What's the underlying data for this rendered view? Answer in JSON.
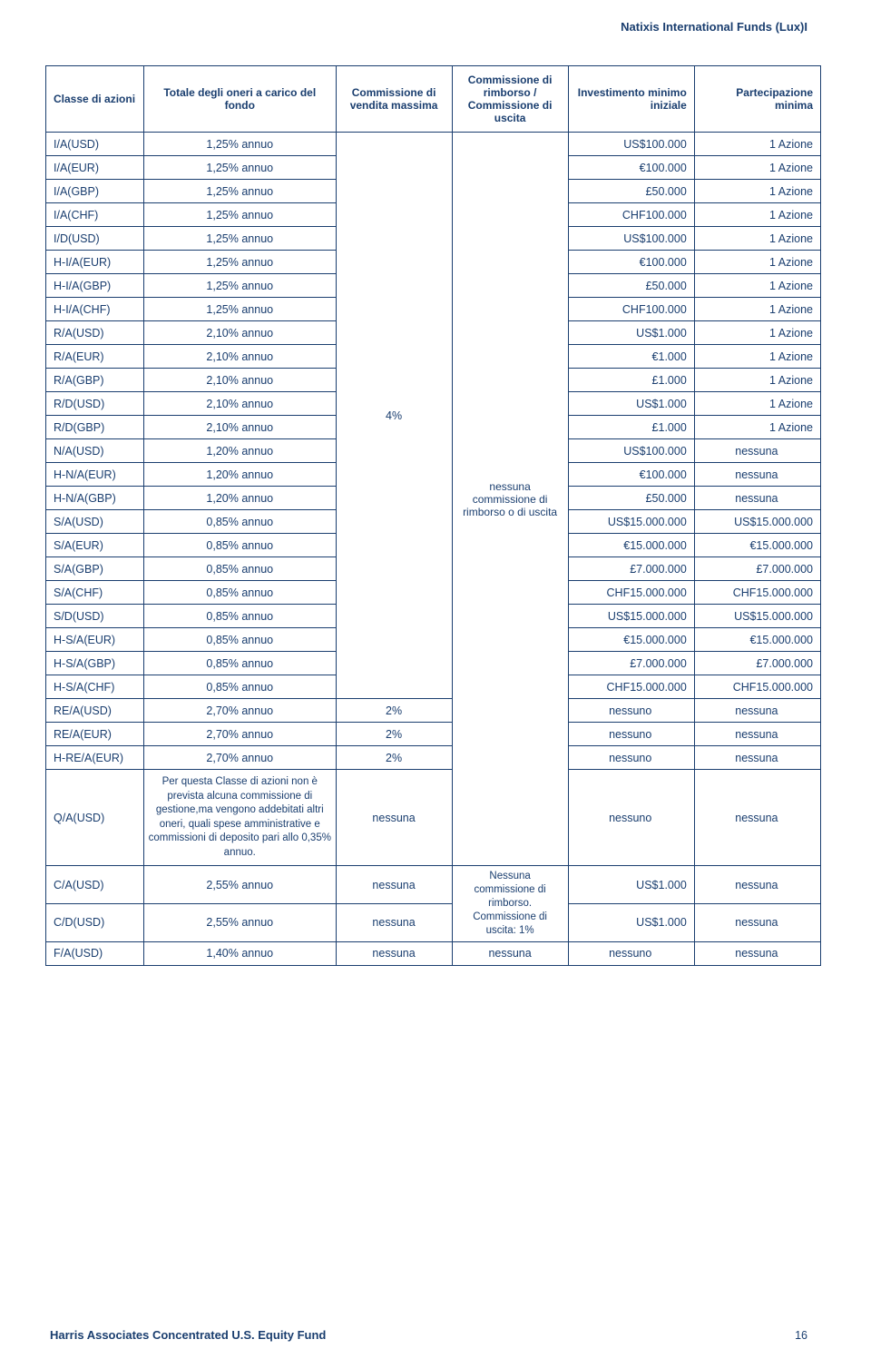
{
  "header": "Natixis International Funds (Lux)I",
  "footer": "Harris Associates Concentrated U.S. Equity Fund",
  "page_num": "16",
  "columns": [
    "Classe di azioni",
    "Totale degli oneri a carico del fondo",
    "Commissione di vendita massima",
    "Commissione di rimborso / Commissione di uscita",
    "Investimento minimo iniziale",
    "Partecipazione minima"
  ],
  "merged_col2": "4%",
  "merged_col3": "nessuna commissione di rimborso o di uscita",
  "q_text": "Per questa Classe di azioni non è prevista alcuna commissione di gestione,ma vengono addebitati altri oneri, quali spese amministrative e commissioni di deposito pari allo 0,35% annuo.",
  "cd_merge": "Nessuna commissione di rimborso. Commissione di uscita: 1%",
  "rows": [
    {
      "c0": "I/A(USD)",
      "c1": "1,25% annuo",
      "c4": "US$100.000",
      "c5": "1 Azione"
    },
    {
      "c0": "I/A(EUR)",
      "c1": "1,25% annuo",
      "c4": "€100.000",
      "c5": "1 Azione"
    },
    {
      "c0": "I/A(GBP)",
      "c1": "1,25% annuo",
      "c4": "£50.000",
      "c5": "1 Azione"
    },
    {
      "c0": "I/A(CHF)",
      "c1": "1,25% annuo",
      "c4": "CHF100.000",
      "c5": "1 Azione"
    },
    {
      "c0": "I/D(USD)",
      "c1": "1,25% annuo",
      "c4": "US$100.000",
      "c5": "1 Azione"
    },
    {
      "c0": "H-I/A(EUR)",
      "c1": "1,25% annuo",
      "c4": "€100.000",
      "c5": "1 Azione"
    },
    {
      "c0": "H-I/A(GBP)",
      "c1": "1,25% annuo",
      "c4": "£50.000",
      "c5": "1 Azione"
    },
    {
      "c0": "H-I/A(CHF)",
      "c1": "1,25% annuo",
      "c4": "CHF100.000",
      "c5": "1 Azione"
    },
    {
      "c0": "R/A(USD)",
      "c1": "2,10% annuo",
      "c4": "US$1.000",
      "c5": "1 Azione"
    },
    {
      "c0": "R/A(EUR)",
      "c1": "2,10% annuo",
      "c4": "€1.000",
      "c5": "1 Azione"
    },
    {
      "c0": "R/A(GBP)",
      "c1": "2,10% annuo",
      "c4": "£1.000",
      "c5": "1 Azione"
    },
    {
      "c0": "R/D(USD)",
      "c1": "2,10% annuo",
      "c4": "US$1.000",
      "c5": "1 Azione"
    },
    {
      "c0": "R/D(GBP)",
      "c1": "2,10% annuo",
      "c4": "£1.000",
      "c5": "1 Azione"
    },
    {
      "c0": "N/A(USD)",
      "c1": "1,20% annuo",
      "c4": "US$100.000",
      "c5": "nessuna"
    },
    {
      "c0": "H-N/A(EUR)",
      "c1": "1,20% annuo",
      "c4": "€100.000",
      "c5": "nessuna"
    },
    {
      "c0": "H-N/A(GBP)",
      "c1": "1,20% annuo",
      "c4": "£50.000",
      "c5": "nessuna"
    },
    {
      "c0": "S/A(USD)",
      "c1": "0,85% annuo",
      "c4": "US$15.000.000",
      "c5": "US$15.000.000"
    },
    {
      "c0": "S/A(EUR)",
      "c1": "0,85% annuo",
      "c4": "€15.000.000",
      "c5": "€15.000.000"
    },
    {
      "c0": "S/A(GBP)",
      "c1": "0,85% annuo",
      "c4": "£7.000.000",
      "c5": "£7.000.000"
    },
    {
      "c0": "S/A(CHF)",
      "c1": "0,85% annuo",
      "c4": "CHF15.000.000",
      "c5": "CHF15.000.000"
    },
    {
      "c0": "S/D(USD)",
      "c1": "0,85% annuo",
      "c4": "US$15.000.000",
      "c5": "US$15.000.000"
    },
    {
      "c0": "H-S/A(EUR)",
      "c1": "0,85% annuo",
      "c4": "€15.000.000",
      "c5": "€15.000.000"
    },
    {
      "c0": "H-S/A(GBP)",
      "c1": "0,85% annuo",
      "c4": "£7.000.000",
      "c5": "£7.000.000"
    },
    {
      "c0": "H-S/A(CHF)",
      "c1": "0,85% annuo",
      "c4": "CHF15.000.000",
      "c5": "CHF15.000.000"
    },
    {
      "c0": "RE/A(USD)",
      "c1": "2,70% annuo",
      "c2": "2%",
      "c4": "nessuno",
      "c5": "nessuna"
    },
    {
      "c0": "RE/A(EUR)",
      "c1": "2,70% annuo",
      "c2": "2%",
      "c4": "nessuno",
      "c5": "nessuna"
    },
    {
      "c0": "H-RE/A(EUR)",
      "c1": "2,70% annuo",
      "c2": "2%",
      "c4": "nessuno",
      "c5": "nessuna"
    },
    {
      "c0": "Q/A(USD)",
      "c2": "nessuna",
      "c4": "nessuno",
      "c5": "nessuna"
    },
    {
      "c0": "C/A(USD)",
      "c1": "2,55% annuo",
      "c2": "nessuna",
      "c4": "US$1.000",
      "c5": "nessuna"
    },
    {
      "c0": "C/D(USD)",
      "c1": "2,55% annuo",
      "c2": "nessuna",
      "c4": "US$1.000",
      "c5": "nessuna"
    },
    {
      "c0": "F/A(USD)",
      "c1": "1,40% annuo",
      "c2": "nessuna",
      "c3": "nessuna",
      "c4": "nessuno",
      "c5": "nessuna"
    }
  ]
}
